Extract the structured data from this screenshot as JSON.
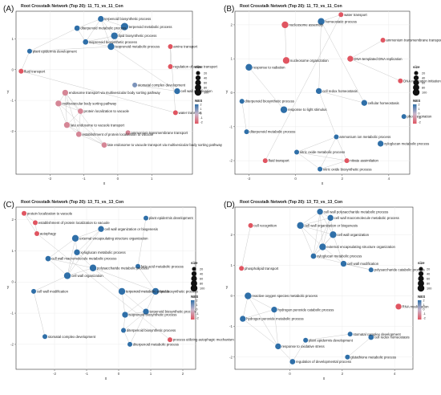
{
  "colors": {
    "neg": "#e05561",
    "mid": "#c9b6cb",
    "pos": "#2f6fa8",
    "edge": "#c4c4c4",
    "panel_bg": "#ffffff",
    "frame": "#333333"
  },
  "legend": {
    "size_title": "size",
    "size_labels": [
      "20",
      "40",
      "60",
      "80",
      "100"
    ],
    "nes_title": "NES",
    "nes_ticks": [
      "2",
      "1",
      "0",
      "-1",
      "-2"
    ]
  },
  "chart_data": [
    {
      "type": "scatter",
      "letter": "(A)",
      "title": "Root Crosstalk Network (Top 20): 11_T1_vs_11_Con",
      "xlabel": "x",
      "ylabel": "y",
      "xlim": [
        -3.0,
        2.2
      ],
      "ylim": [
        -3.4,
        1.9
      ],
      "x_ticks": [
        -2,
        -1,
        0,
        1
      ],
      "y_ticks": [
        -2,
        -1,
        0,
        1
      ],
      "nodes": [
        {
          "label": "terpenoid biosynthetic process",
          "x": -0.5,
          "y": 1.65,
          "nes": 2,
          "size": 40
        },
        {
          "label": "terpenoid metabolic process",
          "x": 0.2,
          "y": 1.4,
          "nes": 2,
          "size": 80
        },
        {
          "label": "diterpenoid metabolic process",
          "x": -1.2,
          "y": 1.35,
          "nes": 2,
          "size": 30
        },
        {
          "label": "lipid biosynthetic process",
          "x": -0.1,
          "y": 1.1,
          "nes": 2,
          "size": 60
        },
        {
          "label": "isoprenoid biosynthetic process",
          "x": -0.95,
          "y": 0.9,
          "nes": 2,
          "size": 30
        },
        {
          "label": "isoprenoid metabolic process",
          "x": -0.2,
          "y": 0.75,
          "nes": 2,
          "size": 60
        },
        {
          "label": "amine transport",
          "x": 1.55,
          "y": 0.75,
          "nes": -2,
          "size": 20
        },
        {
          "label": "plant epidermis development",
          "x": -2.6,
          "y": 0.6,
          "nes": 2,
          "size": 20
        },
        {
          "label": "regulation of amine transport",
          "x": 1.55,
          "y": 0.1,
          "nes": -2,
          "size": 20
        },
        {
          "label": "fluid transport",
          "x": -2.85,
          "y": -0.05,
          "nes": -2,
          "size": 20
        },
        {
          "label": "stomatal complex development",
          "x": 0.5,
          "y": -0.5,
          "nes": 1,
          "size": 20
        },
        {
          "label": "cell wall modification",
          "x": 1.75,
          "y": -0.7,
          "nes": 2,
          "size": 40
        },
        {
          "label": "endosome transport via multivesicular body sorting pathway",
          "x": -1.55,
          "y": -0.75,
          "nes": -1,
          "size": 40
        },
        {
          "label": "multivesicular body sorting pathway",
          "x": -1.75,
          "y": -1.1,
          "nes": -1,
          "size": 40
        },
        {
          "label": "protein localization to vacuole",
          "x": -1.1,
          "y": -1.35,
          "nes": -1,
          "size": 30
        },
        {
          "label": "water transport",
          "x": 1.7,
          "y": -1.4,
          "nes": -2,
          "size": 20
        },
        {
          "label": "late endosome to vacuole transport",
          "x": -1.5,
          "y": -1.8,
          "nes": -1,
          "size": 40
        },
        {
          "label": "establishment of protein localization to vacuole",
          "x": -1.15,
          "y": -2.1,
          "nes": -1,
          "size": 30
        },
        {
          "label": "ammonium transmembrane transport",
          "x": 0.3,
          "y": -2.05,
          "nes": -1,
          "size": 20
        },
        {
          "label": "late endosome to vacuole transport via multivesicular body sorting pathway",
          "x": -0.4,
          "y": -2.45,
          "nes": -1,
          "size": 30
        }
      ],
      "edges": [
        [
          0,
          1
        ],
        [
          0,
          2
        ],
        [
          0,
          3
        ],
        [
          0,
          4
        ],
        [
          0,
          5
        ],
        [
          1,
          3
        ],
        [
          1,
          5
        ],
        [
          2,
          4
        ],
        [
          3,
          4
        ],
        [
          3,
          5
        ],
        [
          4,
          5
        ],
        [
          5,
          7
        ],
        [
          6,
          8
        ],
        [
          6,
          15
        ],
        [
          12,
          13
        ],
        [
          12,
          14
        ],
        [
          12,
          16
        ],
        [
          12,
          17
        ],
        [
          12,
          19
        ],
        [
          13,
          14
        ],
        [
          13,
          16
        ],
        [
          13,
          19
        ],
        [
          14,
          16
        ],
        [
          14,
          17
        ],
        [
          16,
          17
        ],
        [
          16,
          19
        ],
        [
          17,
          19
        ],
        [
          9,
          15
        ],
        [
          10,
          11
        ],
        [
          7,
          9
        ],
        [
          2,
          7
        ],
        [
          5,
          11
        ]
      ]
    },
    {
      "type": "scatter",
      "letter": "(B)",
      "title": "Root Crosstalk Network (Top 20): 11_T3_vs_11_Con",
      "xlabel": "x",
      "ylabel": "y",
      "xlim": [
        -2.6,
        4.9
      ],
      "ylim": [
        -2.4,
        2.4
      ],
      "x_ticks": [
        -2,
        0,
        2,
        4
      ],
      "y_ticks": [
        -2,
        -1,
        0,
        1,
        2
      ],
      "nodes": [
        {
          "label": "water transport",
          "x": 1.95,
          "y": 2.3,
          "nes": -2,
          "size": 20
        },
        {
          "label": "homeostatic process",
          "x": 1.1,
          "y": 2.1,
          "nes": 2,
          "size": 60
        },
        {
          "label": "nucleosome assembly",
          "x": -0.45,
          "y": 2.0,
          "nes": -2,
          "size": 60
        },
        {
          "label": "ammonium transmembrane transport",
          "x": 3.75,
          "y": 1.55,
          "nes": -2,
          "size": 20
        },
        {
          "label": "DNA-templated DNA replication",
          "x": 2.35,
          "y": 1.0,
          "nes": -2,
          "size": 40
        },
        {
          "label": "nucleosome organization",
          "x": -0.4,
          "y": 0.95,
          "nes": -2,
          "size": 60
        },
        {
          "label": "response to radiation",
          "x": -2.0,
          "y": 0.75,
          "nes": 2,
          "size": 60
        },
        {
          "label": "DNA replication initiation",
          "x": 4.5,
          "y": 0.35,
          "nes": -2,
          "size": 20
        },
        {
          "label": "cell redox homeostasis",
          "x": 1.0,
          "y": 0.05,
          "nes": 2,
          "size": 40
        },
        {
          "label": "diterpenoid biosynthetic process",
          "x": -2.3,
          "y": -0.25,
          "nes": 2,
          "size": 20
        },
        {
          "label": "cellular homeostasis",
          "x": 2.95,
          "y": -0.3,
          "nes": 2,
          "size": 40
        },
        {
          "label": "response to light stimulus",
          "x": -0.5,
          "y": -0.5,
          "nes": 2,
          "size": 60
        },
        {
          "label": "photorespiration",
          "x": 4.65,
          "y": -0.7,
          "nes": 2,
          "size": 20
        },
        {
          "label": "diterpenoid metabolic process",
          "x": -2.1,
          "y": -1.15,
          "nes": 2,
          "size": 20
        },
        {
          "label": "ammonium ion metabolic process",
          "x": 1.75,
          "y": -1.3,
          "nes": 2,
          "size": 20
        },
        {
          "label": "xyloglucan metabolic process",
          "x": 3.65,
          "y": -1.5,
          "nes": 2,
          "size": 40
        },
        {
          "label": "nitric oxide metabolic process",
          "x": 0.05,
          "y": -1.75,
          "nes": 2,
          "size": 20
        },
        {
          "label": "nitrate assimilation",
          "x": 2.2,
          "y": -2.0,
          "nes": -2,
          "size": 20
        },
        {
          "label": "fluid transport",
          "x": -1.3,
          "y": -2.0,
          "nes": -2,
          "size": 20
        },
        {
          "label": "nitric oxide biosynthetic process",
          "x": 1.05,
          "y": -2.25,
          "nes": 2,
          "size": 20
        }
      ],
      "edges": [
        [
          2,
          5
        ],
        [
          1,
          8
        ],
        [
          1,
          10
        ],
        [
          8,
          10
        ],
        [
          0,
          1
        ],
        [
          4,
          7
        ],
        [
          6,
          11
        ],
        [
          9,
          13
        ],
        [
          14,
          16
        ],
        [
          14,
          17
        ],
        [
          14,
          19
        ],
        [
          16,
          19
        ],
        [
          17,
          19
        ],
        [
          16,
          17
        ],
        [
          8,
          14
        ],
        [
          3,
          4
        ],
        [
          0,
          18
        ]
      ]
    },
    {
      "type": "scatter",
      "letter": "(C)",
      "title": "Root Crosstalk Network (Top 20): 13_T1_vs_13_Con",
      "xlabel": "x",
      "ylabel": "y",
      "xlim": [
        -3.2,
        2.4
      ],
      "ylim": [
        -2.8,
        2.4
      ],
      "x_ticks": [
        -2,
        -1,
        0,
        1,
        2
      ],
      "y_ticks": [
        -2,
        -1,
        0,
        1,
        2
      ],
      "nodes": [
        {
          "label": "protein localization to vacuole",
          "x": -2.95,
          "y": 2.2,
          "nes": -2,
          "size": 20
        },
        {
          "label": "plant epidermis development",
          "x": 0.85,
          "y": 2.05,
          "nes": 2,
          "size": 20
        },
        {
          "label": "establishment of protein localization to vacuole",
          "x": -2.6,
          "y": 1.9,
          "nes": -2,
          "size": 20
        },
        {
          "label": "cell wall organization or biogenesis",
          "x": -0.55,
          "y": 1.7,
          "nes": 2,
          "size": 40
        },
        {
          "label": "autophagy",
          "x": -2.55,
          "y": 1.55,
          "nes": -2,
          "size": 20
        },
        {
          "label": "external encapsulating structure organization",
          "x": -1.35,
          "y": 1.4,
          "nes": 2,
          "size": 60
        },
        {
          "label": "xyloglucan metabolic process",
          "x": -1.3,
          "y": 0.95,
          "nes": 2,
          "size": 40
        },
        {
          "label": "cell wall macromolecule metabolic process",
          "x": -2.2,
          "y": 0.75,
          "nes": 2,
          "size": 30
        },
        {
          "label": "polysaccharide metabolic process",
          "x": -0.8,
          "y": 0.45,
          "nes": 2,
          "size": 60
        },
        {
          "label": "fatty acid metabolic process",
          "x": 0.6,
          "y": 0.5,
          "nes": 2,
          "size": 20
        },
        {
          "label": "cell wall organization",
          "x": -1.6,
          "y": 0.2,
          "nes": 2,
          "size": 60
        },
        {
          "label": "cell wall modification",
          "x": -2.65,
          "y": -0.3,
          "nes": 2,
          "size": 20
        },
        {
          "label": "terpenoid metabolic process",
          "x": 0.1,
          "y": -0.3,
          "nes": 2,
          "size": 60
        },
        {
          "label": "lipid biosynthetic process",
          "x": 1.15,
          "y": -0.3,
          "nes": 2,
          "size": 60
        },
        {
          "label": "terpenoid biosynthetic process",
          "x": 0.85,
          "y": -0.95,
          "nes": 2,
          "size": 40
        },
        {
          "label": "isoprenoid biosynthetic process",
          "x": 0.2,
          "y": -1.05,
          "nes": 2,
          "size": 40
        },
        {
          "label": "diterpenoid biosynthetic process",
          "x": 0.15,
          "y": -1.55,
          "nes": 2,
          "size": 20
        },
        {
          "label": "stomatal complex development",
          "x": -2.3,
          "y": -1.75,
          "nes": 2,
          "size": 20
        },
        {
          "label": "process utilizing autophagic mechanism",
          "x": 1.6,
          "y": -1.85,
          "nes": -2,
          "size": 20
        },
        {
          "label": "diterpenoid metabolic process",
          "x": 0.35,
          "y": -2.0,
          "nes": 2,
          "size": 20
        }
      ],
      "edges": [
        [
          0,
          2
        ],
        [
          0,
          4
        ],
        [
          2,
          4
        ],
        [
          3,
          5
        ],
        [
          3,
          6
        ],
        [
          3,
          10
        ],
        [
          5,
          6
        ],
        [
          5,
          7
        ],
        [
          5,
          10
        ],
        [
          6,
          8
        ],
        [
          6,
          10
        ],
        [
          7,
          8
        ],
        [
          7,
          10
        ],
        [
          8,
          10
        ],
        [
          8,
          12
        ],
        [
          12,
          13
        ],
        [
          12,
          14
        ],
        [
          12,
          15
        ],
        [
          13,
          14
        ],
        [
          13,
          15
        ],
        [
          14,
          15
        ],
        [
          14,
          16
        ],
        [
          15,
          16
        ],
        [
          16,
          19
        ],
        [
          14,
          19
        ],
        [
          9,
          13
        ],
        [
          4,
          18
        ],
        [
          1,
          9
        ],
        [
          10,
          11
        ],
        [
          11,
          17
        ],
        [
          8,
          13
        ]
      ]
    },
    {
      "type": "scatter",
      "letter": "(D)",
      "title": "Root Crosstalk Network (Top 20): 13_T3_vs_13_Con",
      "xlabel": "x",
      "ylabel": "y",
      "xlim": [
        -2.1,
        4.7
      ],
      "ylim": [
        -2.4,
        2.9
      ],
      "x_ticks": [
        0,
        2,
        4
      ],
      "y_ticks": [
        -2,
        -1,
        0,
        1,
        2
      ],
      "nodes": [
        {
          "label": "cell wall polysaccharide metabolic process",
          "x": 1.15,
          "y": 2.75,
          "nes": 2,
          "size": 40
        },
        {
          "label": "cell wall macromolecule metabolic process",
          "x": 1.55,
          "y": 2.55,
          "nes": 2,
          "size": 40
        },
        {
          "label": "cell wall organization or biogenesis",
          "x": 0.4,
          "y": 2.3,
          "nes": 2,
          "size": 60
        },
        {
          "label": "cell recognition",
          "x": -1.5,
          "y": 2.3,
          "nes": -2,
          "size": 20
        },
        {
          "label": "cell wall organization",
          "x": 1.65,
          "y": 2.0,
          "nes": 2,
          "size": 60
        },
        {
          "label": "external encapsulating structure organization",
          "x": 1.25,
          "y": 1.6,
          "nes": 2,
          "size": 60
        },
        {
          "label": "xyloglucan metabolic process",
          "x": 0.9,
          "y": 1.3,
          "nes": 2,
          "size": 30
        },
        {
          "label": "cell wall modification",
          "x": 2.05,
          "y": 1.05,
          "nes": 2,
          "size": 40
        },
        {
          "label": "polysaccharide catabolic process",
          "x": 3.1,
          "y": 0.85,
          "nes": 2,
          "size": 20
        },
        {
          "label": "phospholipid transport",
          "x": -1.85,
          "y": 0.9,
          "nes": -2,
          "size": 20
        },
        {
          "label": "reactive oxygen species metabolic process",
          "x": -1.6,
          "y": 0.0,
          "nes": 2,
          "size": 60
        },
        {
          "label": "RNA modification",
          "x": 4.15,
          "y": -0.35,
          "nes": -2,
          "size": 40
        },
        {
          "label": "hydrogen peroxide catabolic process",
          "x": -0.6,
          "y": -0.45,
          "nes": 2,
          "size": 40
        },
        {
          "label": "hydrogen peroxide metabolic process",
          "x": -1.8,
          "y": -0.75,
          "nes": 2,
          "size": 40
        },
        {
          "label": "stomatal complex development",
          "x": 2.3,
          "y": -1.25,
          "nes": 2,
          "size": 20
        },
        {
          "label": "cell redox homeostasis",
          "x": 3.1,
          "y": -1.35,
          "nes": 2,
          "size": 30
        },
        {
          "label": "plant epidermis development",
          "x": 0.6,
          "y": -1.45,
          "nes": 2,
          "size": 20
        },
        {
          "label": "response to oxidative stress",
          "x": -0.45,
          "y": -1.65,
          "nes": 2,
          "size": 40
        },
        {
          "label": "glutathione metabolic process",
          "x": 2.2,
          "y": -2.0,
          "nes": 2,
          "size": 20
        },
        {
          "label": "regulation of developmental process",
          "x": 0.1,
          "y": -2.15,
          "nes": 2,
          "size": 30
        }
      ],
      "edges": [
        [
          0,
          1
        ],
        [
          0,
          2
        ],
        [
          0,
          4
        ],
        [
          0,
          5
        ],
        [
          0,
          6
        ],
        [
          1,
          2
        ],
        [
          1,
          4
        ],
        [
          1,
          5
        ],
        [
          1,
          6
        ],
        [
          2,
          4
        ],
        [
          2,
          5
        ],
        [
          2,
          6
        ],
        [
          4,
          5
        ],
        [
          4,
          6
        ],
        [
          5,
          6
        ],
        [
          4,
          7
        ],
        [
          5,
          7
        ],
        [
          7,
          8
        ],
        [
          6,
          8
        ],
        [
          10,
          12
        ],
        [
          10,
          13
        ],
        [
          10,
          17
        ],
        [
          12,
          13
        ],
        [
          12,
          17
        ],
        [
          13,
          17
        ],
        [
          14,
          16
        ],
        [
          16,
          19
        ],
        [
          15,
          18
        ],
        [
          17,
          19
        ],
        [
          3,
          9
        ]
      ]
    }
  ]
}
